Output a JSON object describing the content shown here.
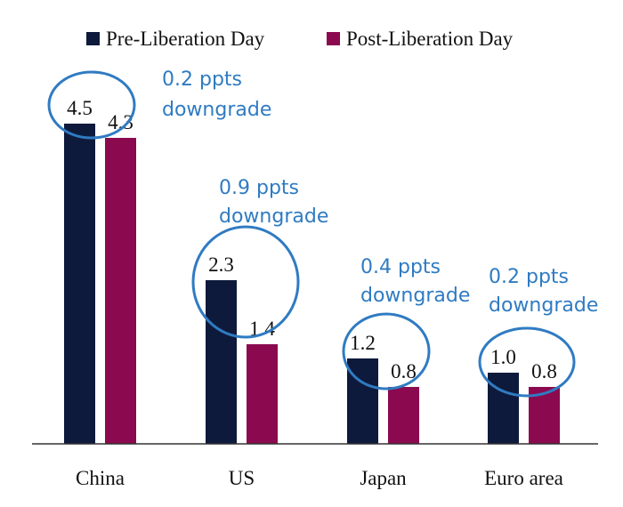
{
  "chart_data": {
    "type": "bar",
    "categories": [
      "China",
      "US",
      "Japan",
      "Euro area"
    ],
    "series": [
      {
        "name": "Pre-Liberation Day",
        "values": [
          4.5,
          2.3,
          1.2,
          1.0
        ],
        "color": "#0e1a3c"
      },
      {
        "name": "Post-Liberation Day",
        "values": [
          4.3,
          1.4,
          0.8,
          0.8
        ],
        "color": "#8b0a4f"
      }
    ],
    "value_labels": [
      [
        "4.5",
        "2.3",
        "1.2",
        "1.0"
      ],
      [
        "4.3",
        "1.4",
        "0.8",
        "0.8"
      ]
    ],
    "annotations": [
      {
        "line1": "0.2 ppts",
        "line2": "downgrade"
      },
      {
        "line1": "0.9 ppts",
        "line2": "downgrade"
      },
      {
        "line1": "0.4 ppts",
        "line2": "downgrade"
      },
      {
        "line1": "0.2 ppts",
        "line2": "downgrade"
      }
    ],
    "annotation_color": "#2f7bc2",
    "ylim": [
      0,
      4.5
    ],
    "legend_position": "top",
    "grid": false
  }
}
